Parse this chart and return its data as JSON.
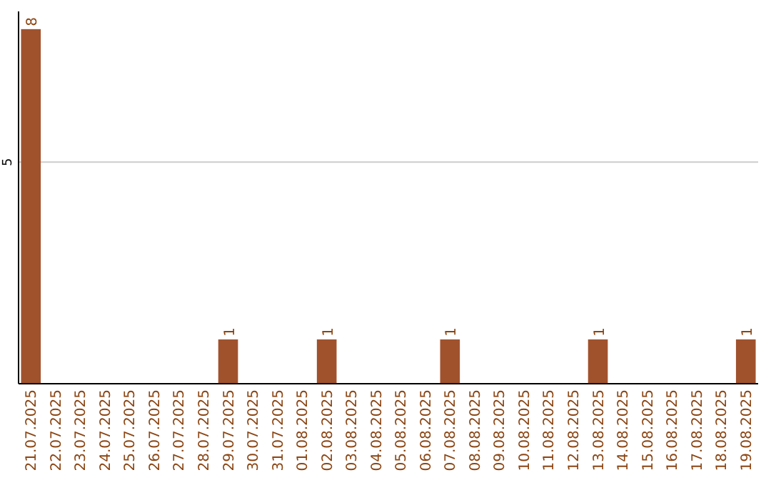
{
  "chart_data": {
    "type": "bar",
    "categories": [
      "21.07.2025",
      "22.07.2025",
      "23.07.2025",
      "24.07.2025",
      "25.07.2025",
      "26.07.2025",
      "27.07.2025",
      "28.07.2025",
      "29.07.2025",
      "30.07.2025",
      "31.07.2025",
      "01.08.2025",
      "02.08.2025",
      "03.08.2025",
      "04.08.2025",
      "05.08.2025",
      "06.08.2025",
      "07.08.2025",
      "08.08.2025",
      "09.08.2025",
      "10.08.2025",
      "11.08.2025",
      "12.08.2025",
      "13.08.2025",
      "14.08.2025",
      "15.08.2025",
      "16.08.2025",
      "17.08.2025",
      "18.08.2025",
      "19.08.2025"
    ],
    "values": [
      8,
      0,
      0,
      0,
      0,
      0,
      0,
      0,
      1,
      0,
      0,
      0,
      1,
      0,
      0,
      0,
      0,
      1,
      0,
      0,
      0,
      0,
      0,
      1,
      0,
      0,
      0,
      0,
      0,
      1
    ],
    "value_labels": [
      "8",
      null,
      null,
      null,
      null,
      null,
      null,
      null,
      "1",
      null,
      null,
      null,
      "1",
      null,
      null,
      null,
      null,
      "1",
      null,
      null,
      null,
      null,
      null,
      "1",
      null,
      null,
      null,
      null,
      null,
      "1"
    ],
    "color": "#a0522d",
    "ylim": [
      0,
      8.4
    ],
    "yticks": [
      5
    ],
    "grid": "y"
  }
}
